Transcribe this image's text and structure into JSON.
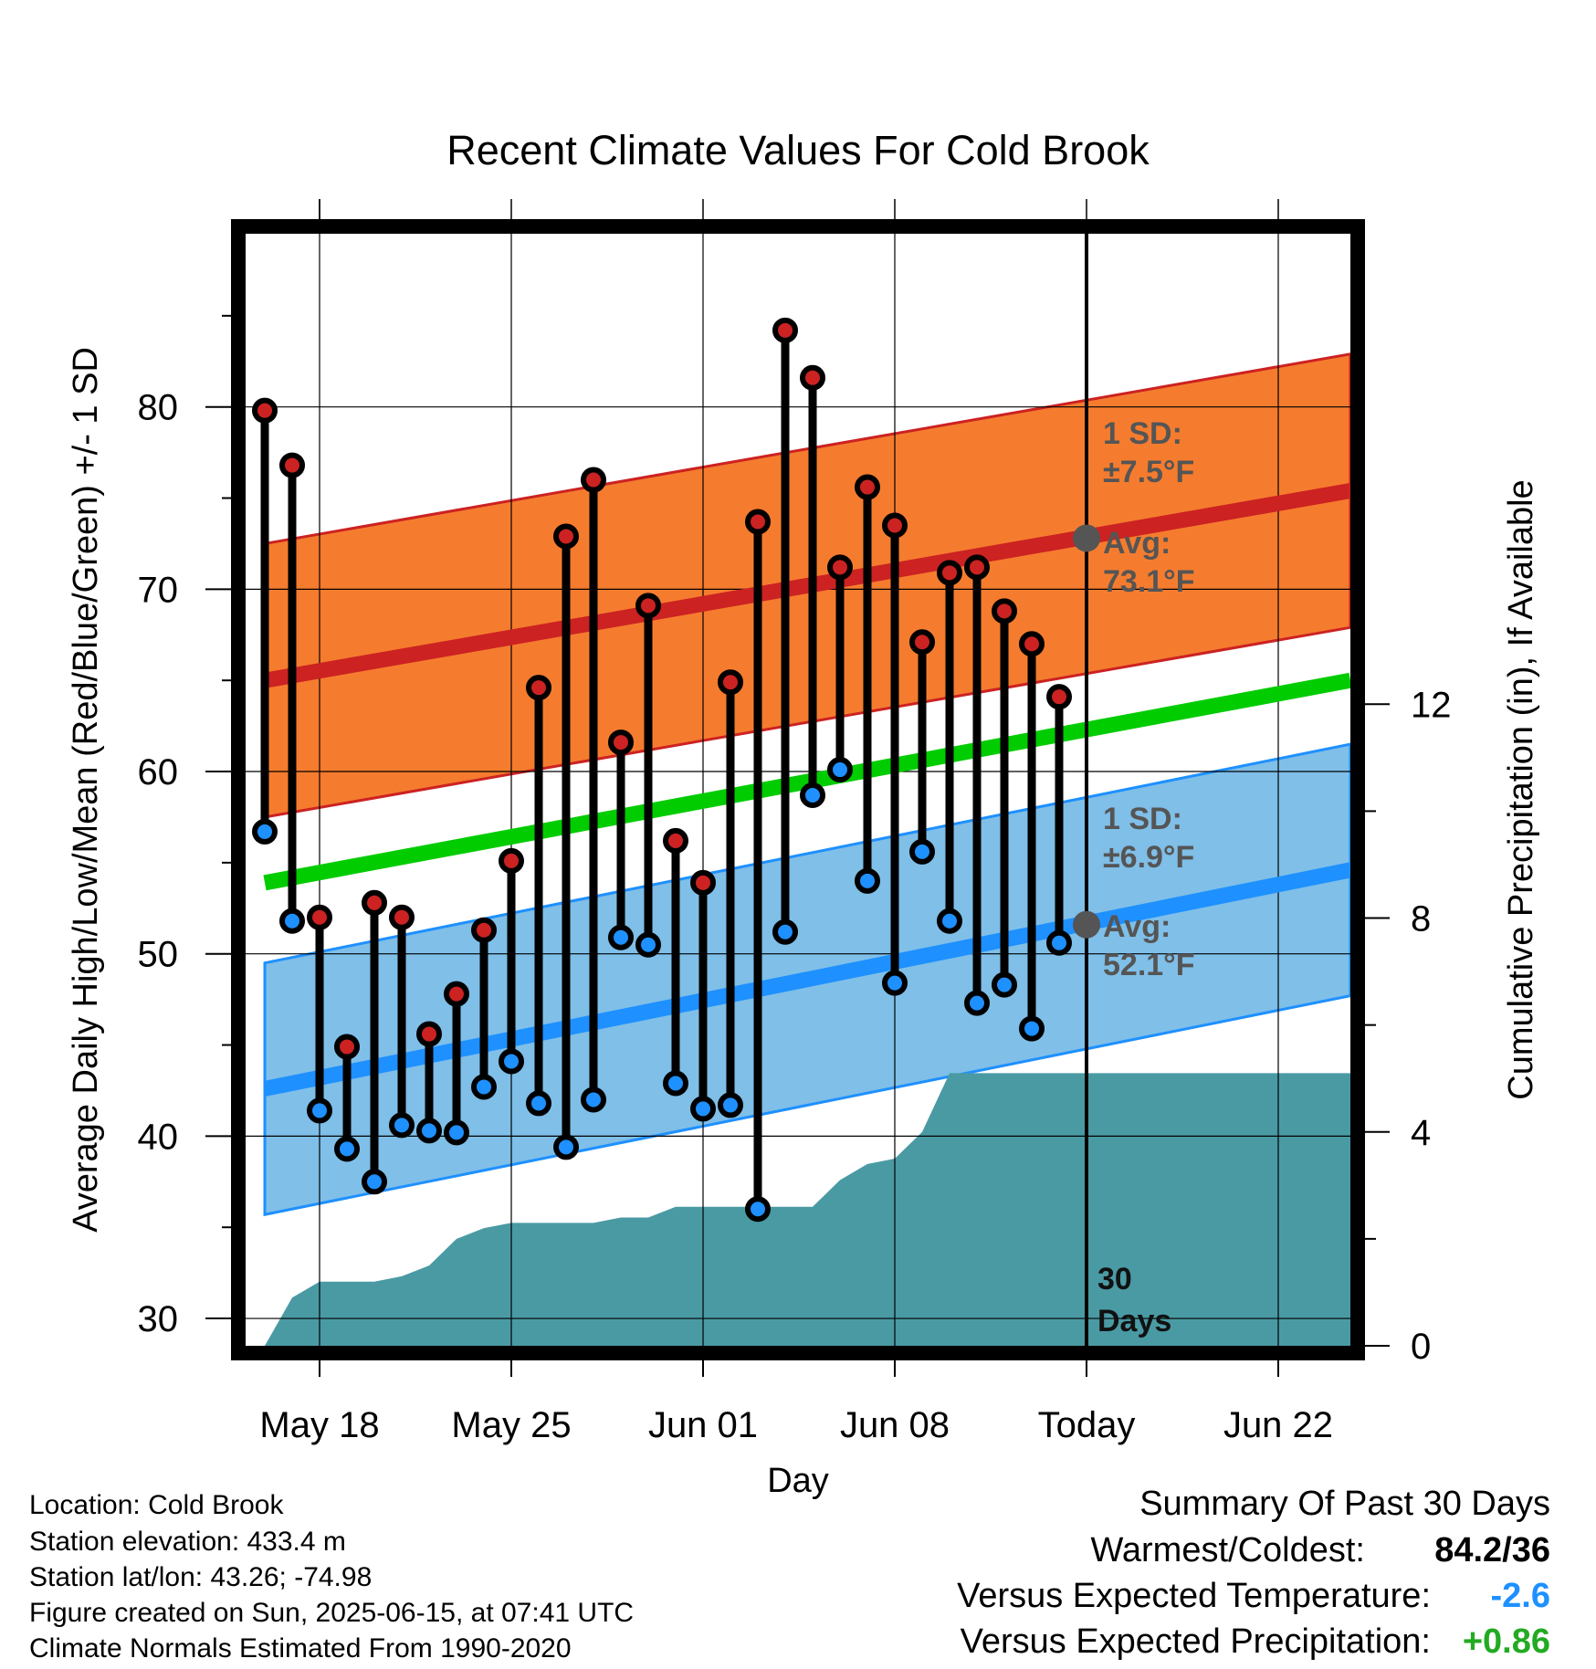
{
  "chart_data": {
    "type": "line",
    "title": "Recent Climate Values For Cold Brook",
    "xlabel": "Day",
    "ylabel": "Average Daily High/Low/Mean (Red/Blue/Green) +/- 1 SD",
    "y2label": "Cumulative Precipitation (in), If Available",
    "ylim": [
      28.5,
      89.5
    ],
    "y2lim": [
      0,
      20.8
    ],
    "x_ticks": [
      "May 18",
      "May 25",
      "Jun 01",
      "Jun 08",
      "Today",
      "Jun 22"
    ],
    "y_ticks": [
      "30",
      "40",
      "50",
      "60",
      "70",
      "80"
    ],
    "y2_ticks": [
      "0",
      "4",
      "8",
      "12"
    ],
    "days": [
      "2025-05-16",
      "2025-05-17",
      "2025-05-18",
      "2025-05-19",
      "2025-05-20",
      "2025-05-21",
      "2025-05-22",
      "2025-05-23",
      "2025-05-24",
      "2025-05-25",
      "2025-05-26",
      "2025-05-27",
      "2025-05-28",
      "2025-05-29",
      "2025-05-30",
      "2025-05-31",
      "2025-06-01",
      "2025-06-02",
      "2025-06-03",
      "2025-06-04",
      "2025-06-05",
      "2025-06-06",
      "2025-06-07",
      "2025-06-08",
      "2025-06-09",
      "2025-06-10",
      "2025-06-11",
      "2025-06-12",
      "2025-06-13",
      "2025-06-14"
    ],
    "highs": [
      79.8,
      76.8,
      52.0,
      44.9,
      52.8,
      52.0,
      45.6,
      47.8,
      51.3,
      55.1,
      64.6,
      72.9,
      76.0,
      61.6,
      69.1,
      56.2,
      53.9,
      64.9,
      73.7,
      84.2,
      81.6,
      71.2,
      75.6,
      73.5,
      67.1,
      70.9,
      71.2,
      68.8,
      67.0,
      64.1
    ],
    "lows": [
      56.7,
      51.8,
      41.4,
      39.3,
      37.5,
      40.6,
      40.3,
      40.2,
      42.7,
      44.1,
      41.8,
      39.4,
      42.0,
      50.9,
      50.5,
      42.9,
      41.5,
      41.7,
      36.0,
      51.2,
      58.7,
      60.1,
      54.0,
      48.4,
      55.6,
      51.8,
      47.3,
      48.3,
      45.9,
      50.6
    ],
    "series": [
      {
        "name": "High",
        "color": "#cc2222",
        "x": [
          "2025-05-16",
          "2025-06-25"
        ],
        "values": [
          65.0,
          75.4
        ],
        "sd": 7.5
      },
      {
        "name": "Mean",
        "color": "#00cc00",
        "x": [
          "2025-05-16",
          "2025-06-25"
        ],
        "values": [
          53.9,
          65.0
        ]
      },
      {
        "name": "Low",
        "color": "#1e90ff",
        "x": [
          "2025-05-16",
          "2025-06-25"
        ],
        "values": [
          42.6,
          54.6
        ],
        "sd": 6.9
      }
    ],
    "precip": {
      "x": [
        "2025-05-16",
        "2025-05-17",
        "2025-05-18",
        "2025-05-19",
        "2025-05-20",
        "2025-05-21",
        "2025-05-22",
        "2025-05-23",
        "2025-05-24",
        "2025-05-25",
        "2025-05-26",
        "2025-05-27",
        "2025-05-28",
        "2025-05-29",
        "2025-05-30",
        "2025-05-31",
        "2025-06-01",
        "2025-06-02",
        "2025-06-03",
        "2025-06-04",
        "2025-06-05",
        "2025-06-06",
        "2025-06-07",
        "2025-06-08",
        "2025-06-09",
        "2025-06-10",
        "2025-06-11",
        "2025-06-12",
        "2025-06-13",
        "2025-06-14",
        "2025-06-15",
        "2025-06-25"
      ],
      "values": [
        0.0,
        0.9,
        1.2,
        1.2,
        1.2,
        1.3,
        1.5,
        2.0,
        2.2,
        2.3,
        2.3,
        2.3,
        2.3,
        2.4,
        2.4,
        2.6,
        2.6,
        2.6,
        2.6,
        2.6,
        2.6,
        3.1,
        3.4,
        3.5,
        4.0,
        5.1,
        5.1,
        5.1,
        5.1,
        5.1,
        5.1,
        5.1
      ],
      "color": "#4a9aa4"
    },
    "today": "2025-06-15",
    "annotations": {
      "high_sd_label": "1 SD:",
      "high_sd_value": "±7.5°F",
      "high_avg_label": "Avg:",
      "high_avg_value": "73.1°F",
      "low_sd_label": "1 SD:",
      "low_sd_value": "±6.9°F",
      "low_avg_label": "Avg:",
      "low_avg_value": "52.1°F",
      "days_num": "30",
      "days_word": "Days"
    },
    "colors": {
      "high_band": "#f57c2e",
      "low_band": "#7fbfe8",
      "high_line": "#cc2222",
      "low_line": "#1e90ff",
      "mean_line": "#00cc00",
      "precip": "#4a9aa4"
    }
  },
  "info": {
    "location": "Location: Cold Brook",
    "elevation": "Station elevation: 433.4 m",
    "latlon": "Station lat/lon: 43.26; -74.98",
    "created": "Figure created on Sun, 2025-06-15, at 07:41 UTC",
    "normals": "Climate Normals Estimated From 1990-2020"
  },
  "summary": {
    "heading": "Summary Of Past 30 Days",
    "warm_cold_label": "Warmest/Coldest:",
    "warm_cold_value": "84.2/36",
    "temp_label": "Versus Expected Temperature:",
    "temp_value": "-2.6",
    "temp_color": "#1e90ff",
    "precip_label": "Versus Expected Precipitation:",
    "precip_value": "+0.86",
    "precip_color": "#22aa22"
  }
}
